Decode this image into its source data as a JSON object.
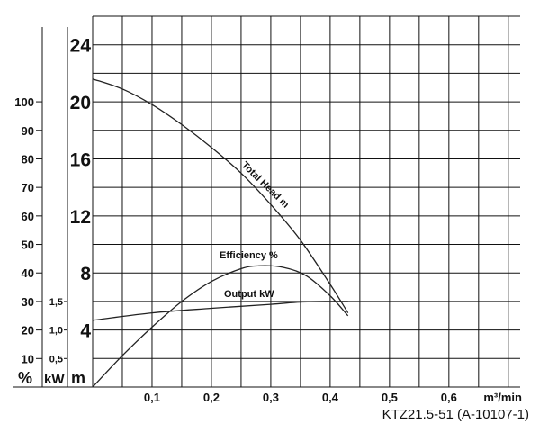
{
  "chart_data": {
    "type": "line",
    "model": "KTZ21.5-51 (A-10107-1)",
    "x_unit": "m³/min",
    "x_ticks": [
      "0,1",
      "0,2",
      "0,3",
      "0,4",
      "0,5",
      "0,6"
    ],
    "xlim": [
      0,
      0.72
    ],
    "head_axis": {
      "unit": "m",
      "ticks": [
        "4",
        "8",
        "12",
        "16",
        "20",
        "24"
      ],
      "range": [
        0,
        26
      ]
    },
    "percent_axis": {
      "unit": "%",
      "ticks": [
        "10",
        "20",
        "30",
        "40",
        "50",
        "60",
        "70",
        "80",
        "90",
        "100"
      ],
      "range": [
        0,
        130
      ]
    },
    "kw_axis": {
      "unit": "kW",
      "ticks": [
        "0,5",
        "1,0",
        "1,5"
      ],
      "range": [
        0,
        6.5
      ]
    },
    "grid": true,
    "series": [
      {
        "name": "Total Head m",
        "axis": "head",
        "x": [
          0,
          0.05,
          0.1,
          0.15,
          0.2,
          0.25,
          0.3,
          0.35,
          0.4,
          0.43
        ],
        "y": [
          21.6,
          20.9,
          19.8,
          18.4,
          16.8,
          15.0,
          12.8,
          10.3,
          7.2,
          5.2
        ]
      },
      {
        "name": "Efficiency %",
        "axis": "percent",
        "x": [
          0,
          0.05,
          0.1,
          0.15,
          0.2,
          0.25,
          0.28,
          0.32,
          0.36,
          0.4,
          0.43
        ],
        "y": [
          0,
          11,
          21,
          30,
          37,
          41.5,
          42.5,
          42,
          39,
          32,
          25
        ]
      },
      {
        "name": "Output kW",
        "axis": "kw",
        "x": [
          0,
          0.1,
          0.2,
          0.3,
          0.35,
          0.4,
          0.43
        ],
        "y": [
          1.17,
          1.3,
          1.38,
          1.45,
          1.49,
          1.5,
          1.5
        ]
      }
    ]
  }
}
